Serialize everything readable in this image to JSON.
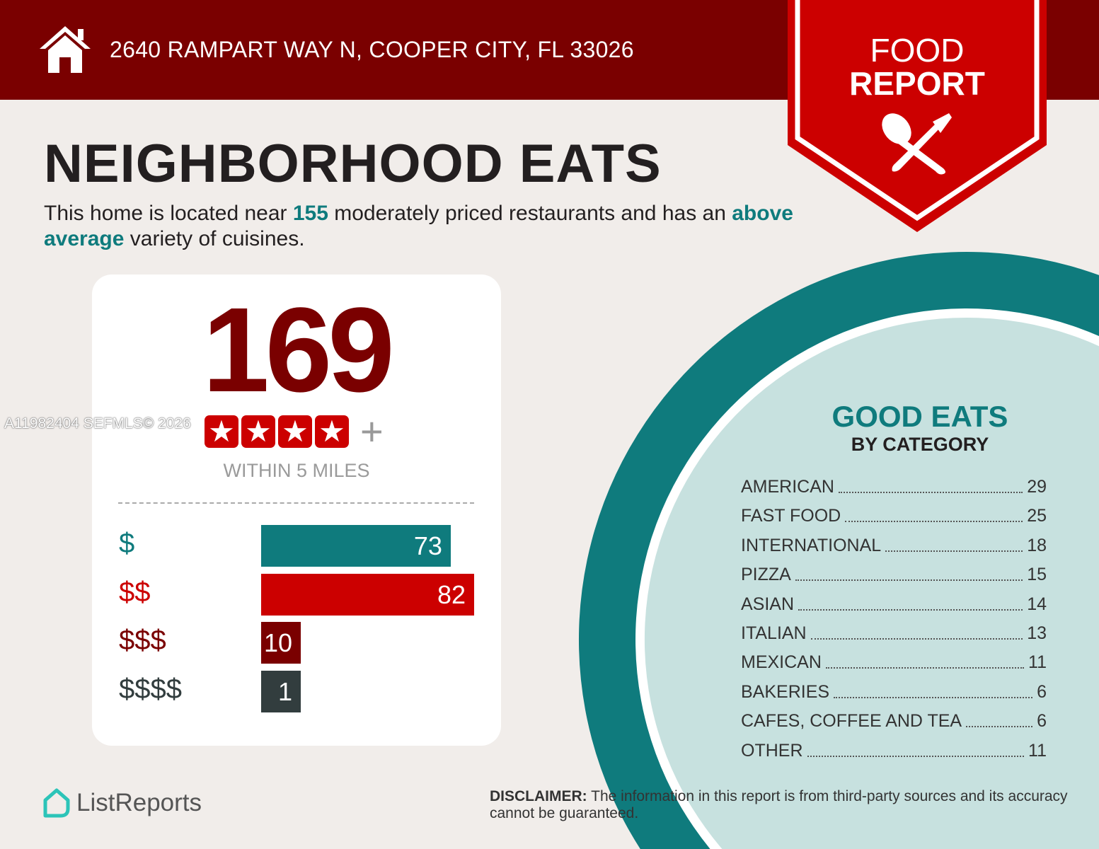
{
  "header": {
    "address": "2640 RAMPART WAY N, COOPER CITY, FL 33026",
    "badge_line1": "FOOD",
    "badge_line2": "REPORT",
    "icon": "home-icon",
    "badge_icon": "spoon-fork-icon"
  },
  "title": "NEIGHBORHOOD EATS",
  "summary": {
    "p1": "This home is located near ",
    "count": "155",
    "p2": " moderately priced restaurants and has an ",
    "variety": "above average",
    "p3": " variety of cuisines."
  },
  "card": {
    "total": "169",
    "rating_stars": 4,
    "rating_plus": "+",
    "within": "WITHIN 5 MILES"
  },
  "watermark": "A11982404  SEFMLS© 2026",
  "chart_data": {
    "type": "bar",
    "orientation": "horizontal",
    "categories": [
      "$",
      "$$",
      "$$$",
      "$$$$"
    ],
    "values": [
      73,
      82,
      10,
      1
    ],
    "colors": [
      "#0f7b7d",
      "#cc0000",
      "#7a0000",
      "#323d3e"
    ]
  },
  "good_eats": {
    "title": "GOOD EATS",
    "subtitle": "BY CATEGORY",
    "items": [
      {
        "label": "AMERICAN",
        "value": "29"
      },
      {
        "label": "FAST FOOD",
        "value": "25"
      },
      {
        "label": "INTERNATIONAL",
        "value": "18"
      },
      {
        "label": "PIZZA",
        "value": "15"
      },
      {
        "label": "ASIAN",
        "value": "14"
      },
      {
        "label": "ITALIAN",
        "value": "13"
      },
      {
        "label": "MEXICAN",
        "value": "11"
      },
      {
        "label": "BAKERIES",
        "value": "6"
      },
      {
        "label": "CAFES, COFFEE AND TEA",
        "value": "6"
      },
      {
        "label": "OTHER",
        "value": "11"
      }
    ]
  },
  "footer": {
    "logo": "ListReports",
    "disclaimer_label": "DISCLAIMER:",
    "disclaimer": " The information in this report is from third-party sources and its accuracy cannot be guaranteed."
  },
  "colors": {
    "dark_red": "#7a0000",
    "red": "#cc0000",
    "teal": "#0f7b7d",
    "light_teal": "#c7e1df"
  }
}
